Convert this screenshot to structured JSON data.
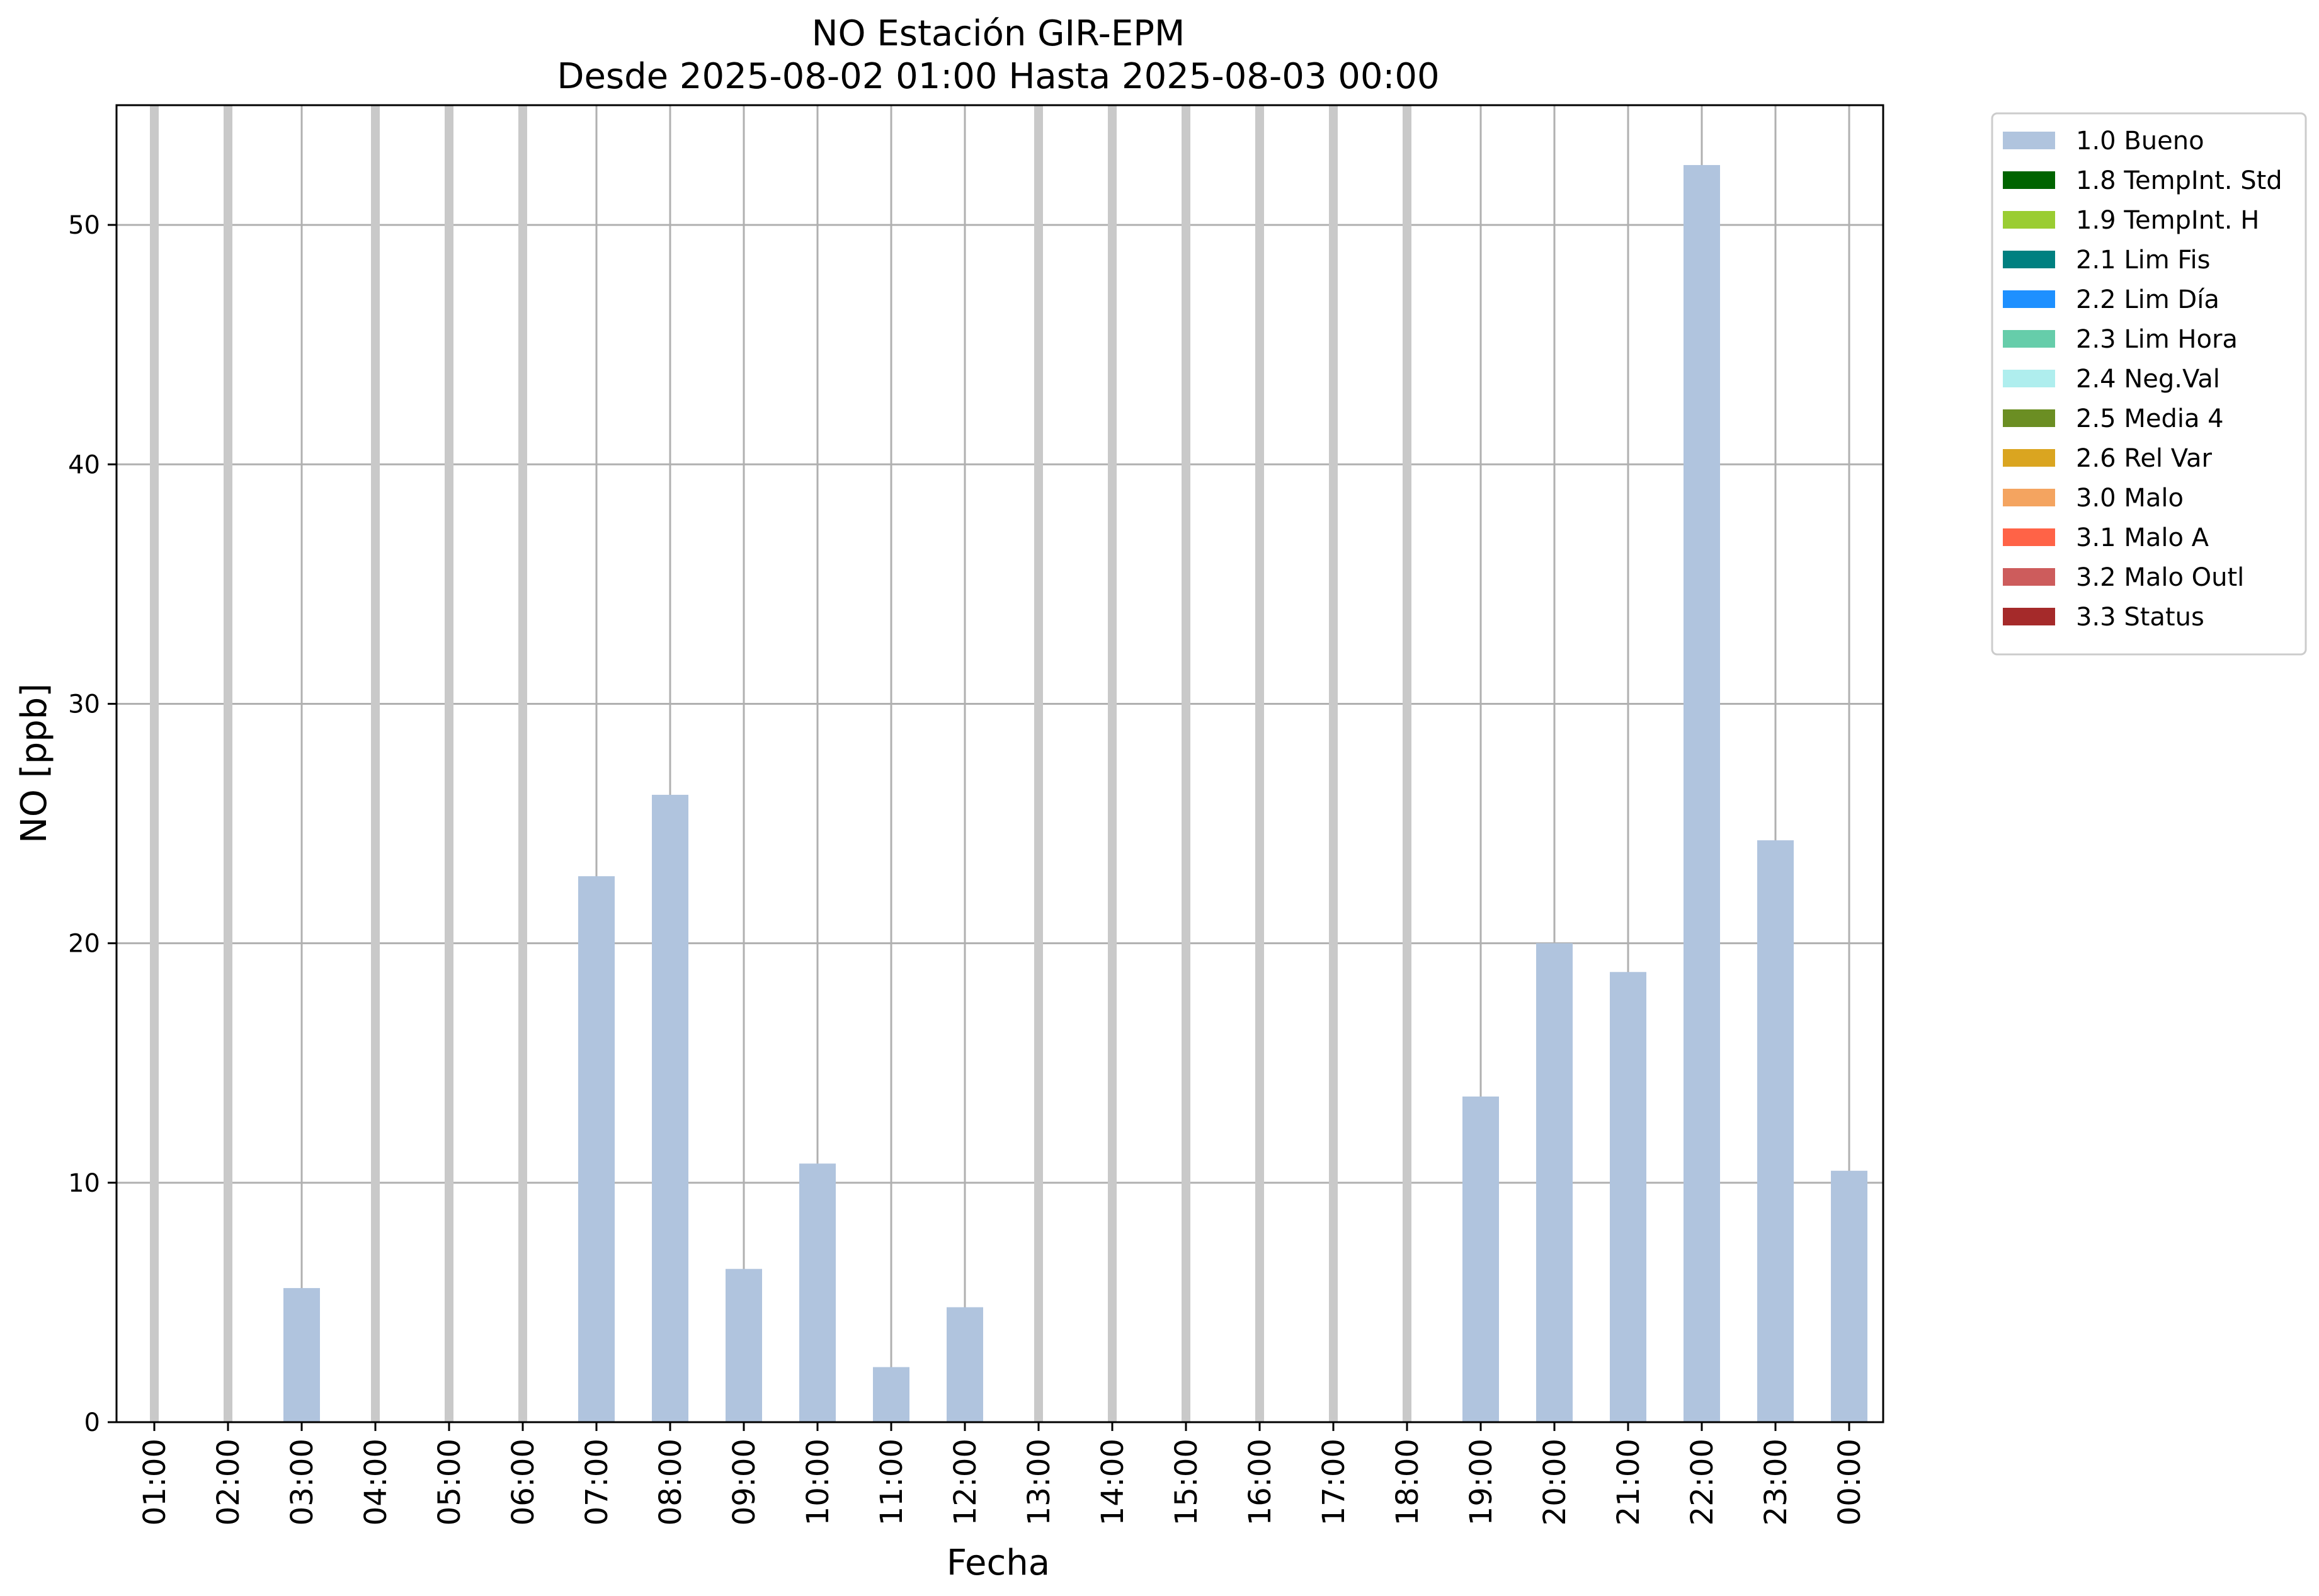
{
  "chart_data": {
    "type": "bar",
    "title": "NO Estación GIR-EPM",
    "subtitle": "Desde 2025-08-02 01:00 Hasta 2025-08-03 00:00",
    "xlabel": "Fecha",
    "ylabel": "NO [ppb]",
    "ylim": [
      0,
      55
    ],
    "yticks": [
      0,
      10,
      20,
      30,
      40,
      50
    ],
    "grid": true,
    "legend_position": "outside-top-right",
    "categories": [
      "01:00",
      "02:00",
      "03:00",
      "04:00",
      "05:00",
      "06:00",
      "07:00",
      "08:00",
      "09:00",
      "10:00",
      "11:00",
      "12:00",
      "13:00",
      "14:00",
      "15:00",
      "16:00",
      "17:00",
      "18:00",
      "19:00",
      "20:00",
      "21:00",
      "22:00",
      "23:00",
      "00:00"
    ],
    "series": [
      {
        "name": "1.0 Bueno",
        "color": "#b0c4de",
        "values": [
          null,
          null,
          5.6,
          null,
          null,
          null,
          22.8,
          26.2,
          6.4,
          10.8,
          2.3,
          4.8,
          null,
          null,
          null,
          null,
          null,
          null,
          13.6,
          20.0,
          18.8,
          52.5,
          24.3,
          10.5
        ]
      }
    ],
    "missing_hours": [
      "01:00",
      "02:00",
      "04:00",
      "05:00",
      "06:00",
      "13:00",
      "14:00",
      "15:00",
      "16:00",
      "17:00",
      "18:00"
    ],
    "legend": [
      {
        "label": "1.0 Bueno",
        "color": "#b0c4de"
      },
      {
        "label": "1.8 TempInt. Std",
        "color": "#006400"
      },
      {
        "label": "1.9 TempInt. H",
        "color": "#9acd32"
      },
      {
        "label": "2.1 Lim Fis",
        "color": "#008080"
      },
      {
        "label": "2.2 Lim Día",
        "color": "#1e90ff"
      },
      {
        "label": "2.3 Lim Hora",
        "color": "#66cdaa"
      },
      {
        "label": "2.4 Neg.Val",
        "color": "#afeeee"
      },
      {
        "label": "2.5 Media 4",
        "color": "#6b8e23"
      },
      {
        "label": "2.6 Rel Var",
        "color": "#daa520"
      },
      {
        "label": "3.0 Malo",
        "color": "#f4a460"
      },
      {
        "label": "3.1 Malo A",
        "color": "#ff6347"
      },
      {
        "label": "3.2 Malo Outl",
        "color": "#cd5c5c"
      },
      {
        "label": "3.3 Status",
        "color": "#a52a2a"
      }
    ]
  }
}
